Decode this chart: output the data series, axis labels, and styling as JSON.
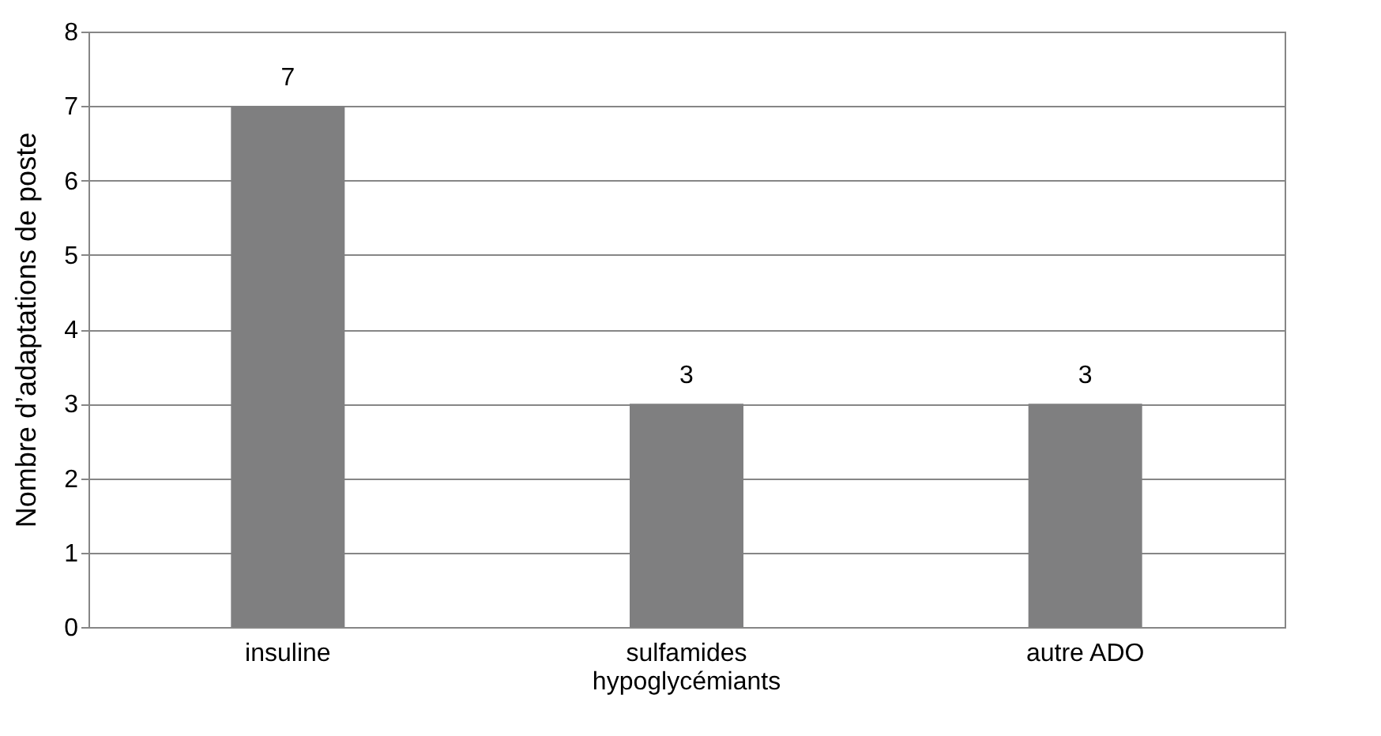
{
  "chart_data": {
    "type": "bar",
    "ylabel": "Nombre d’adaptations de poste",
    "categories": [
      "insuline",
      "sulfamides\nhypoglycémiants",
      "autre ADO"
    ],
    "values": [
      7,
      3,
      3
    ],
    "color": "#7f7f80",
    "ylim": [
      0,
      8
    ],
    "yticks": [
      0,
      1,
      2,
      3,
      4,
      5,
      6,
      7,
      8
    ],
    "grid": "y",
    "data_labels": true
  }
}
